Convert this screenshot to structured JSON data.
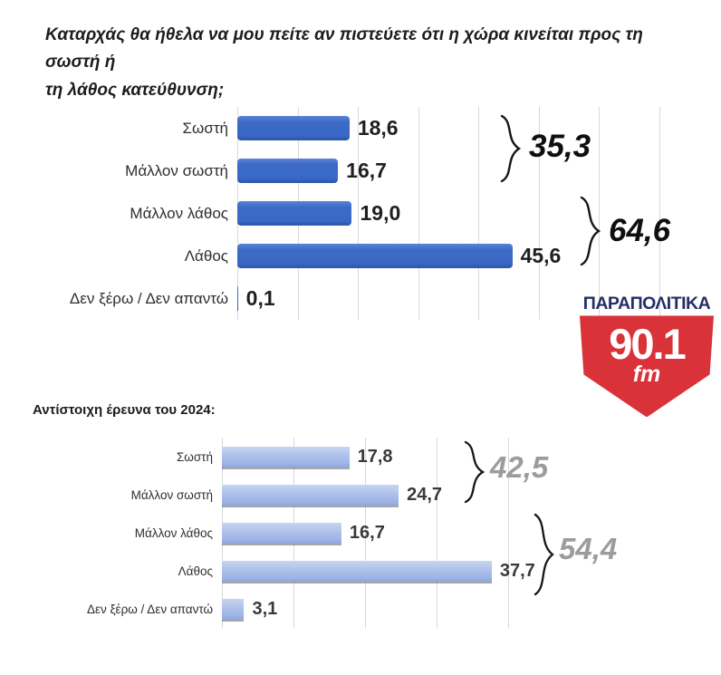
{
  "title": {
    "line1": "Καταρχάς θα ήθελα να μου πείτε αν πιστεύετε ότι η χώρα κινείται προς τη σωστή ή",
    "line2": "τη λάθος κατεύθυνση;"
  },
  "subtitle": "Αντίστοιχη έρευνα του 2024:",
  "logo": {
    "name": "ΠΑΡΑΠΟΛΙΤΙΚΑ",
    "frequency": "90.1",
    "band": "fm",
    "navy_color": "#232F66",
    "red_color": "#D93239"
  },
  "chart_data": [
    {
      "type": "bar",
      "orientation": "horizontal",
      "title": "",
      "categories": [
        "Σωστή",
        "Μάλλον σωστή",
        "Μάλλον λάθος",
        "Λάθος",
        "Δεν ξέρω / Δεν απαντώ"
      ],
      "values": [
        18.6,
        16.7,
        19.0,
        45.6,
        0.1
      ],
      "value_labels": [
        "18,6",
        "16,7",
        "19,0",
        "45,6",
        "0,1"
      ],
      "xlim": [
        0,
        70
      ],
      "gridline_step": 10,
      "grid": true,
      "legend": "none",
      "bar_color": "#3A68C6",
      "annotations": [
        {
          "label": "35,3",
          "covers": "Σωστή + Μάλλον σωστή",
          "color": "#0f0f0f"
        },
        {
          "label": "64,6",
          "covers": "Μάλλον λάθος + Λάθος",
          "color": "#0f0f0f"
        }
      ]
    },
    {
      "type": "bar",
      "orientation": "horizontal",
      "title": "Αντίστοιχη έρευνα του 2024:",
      "categories": [
        "Σωστή",
        "Μάλλον σωστή",
        "Μάλλον λάθος",
        "Λάθος",
        "Δεν ξέρω / Δεν απαντώ"
      ],
      "values": [
        17.8,
        24.7,
        16.7,
        37.7,
        3.1
      ],
      "value_labels": [
        "17,8",
        "24,7",
        "16,7",
        "37,7",
        "3,1"
      ],
      "xlim": [
        0,
        40
      ],
      "gridline_step": 10,
      "grid": true,
      "legend": "none",
      "bar_color": "#A9BCE9",
      "annotations": [
        {
          "label": "42,5",
          "covers": "Σωστή + Μάλλον σωστή",
          "color": "#9c9c9c"
        },
        {
          "label": "54,4",
          "covers": "Μάλλον λάθος + Λάθος",
          "color": "#9c9c9c"
        }
      ]
    }
  ]
}
